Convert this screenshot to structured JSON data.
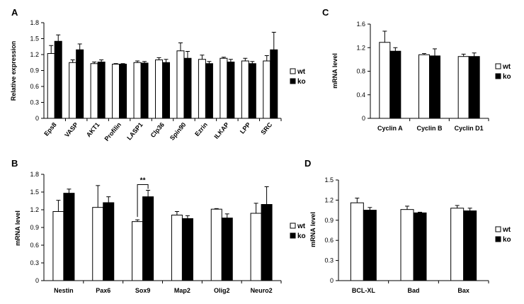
{
  "chart_data": [
    {
      "panel": "A",
      "type": "bar",
      "ylabel": "Relative expression",
      "ylim": [
        0,
        1.8
      ],
      "yticks": [
        "0",
        "0.3",
        "0.6",
        "0.9",
        "1.2",
        "1.5",
        "1.8"
      ],
      "categories": [
        "Eps8",
        "VASP",
        "AKT1",
        "Profilin",
        "LASP1",
        "Clp36",
        "Spin90",
        "Ezrin",
        "ILKAP",
        "LPP",
        "SRC"
      ],
      "series": [
        {
          "name": "wt",
          "color": "#ffffff",
          "values": [
            1.22,
            1.05,
            1.03,
            1.02,
            1.05,
            1.1,
            1.27,
            1.11,
            1.13,
            1.08,
            1.08
          ],
          "errors": [
            0.15,
            0.05,
            0.03,
            0.01,
            0.03,
            0.04,
            0.15,
            0.08,
            0.02,
            0.05,
            0.1
          ]
        },
        {
          "name": "ko",
          "color": "#000000",
          "values": [
            1.45,
            1.29,
            1.06,
            1.02,
            1.04,
            1.05,
            1.13,
            1.03,
            1.06,
            1.03,
            1.29
          ],
          "errors": [
            0.12,
            0.11,
            0.04,
            0.01,
            0.03,
            0.06,
            0.13,
            0.04,
            0.05,
            0.04,
            0.33
          ]
        }
      ],
      "annotations": [],
      "legend": [
        "wt",
        "ko"
      ]
    },
    {
      "panel": "B",
      "type": "bar",
      "ylabel": "mRNA level",
      "ylim": [
        0,
        1.8
      ],
      "yticks": [
        "0",
        "0.3",
        "0.6",
        "0.9",
        "1.2",
        "1.5",
        "1.8"
      ],
      "categories": [
        "Nestin",
        "Pax6",
        "Sox9",
        "Map2",
        "Olig2",
        "Neuro2"
      ],
      "series": [
        {
          "name": "wt",
          "color": "#ffffff",
          "values": [
            1.17,
            1.24,
            1.0,
            1.11,
            1.21,
            1.14
          ],
          "errors": [
            0.19,
            0.37,
            0.03,
            0.06,
            0.01,
            0.17
          ]
        },
        {
          "name": "ko",
          "color": "#000000",
          "values": [
            1.48,
            1.32,
            1.42,
            1.05,
            1.06,
            1.29
          ],
          "errors": [
            0.07,
            0.1,
            0.11,
            0.05,
            0.07,
            0.3
          ]
        }
      ],
      "annotations": [
        {
          "category": "Sox9",
          "text": "**"
        }
      ],
      "legend": [
        "wt",
        "ko"
      ]
    },
    {
      "panel": "C",
      "type": "bar",
      "ylabel": "mRNA level",
      "ylim": [
        0,
        1.6
      ],
      "yticks": [
        "0",
        "0.4",
        "0.8",
        "1.2",
        "1.6"
      ],
      "categories": [
        "Cyclin A",
        "Cyclin B",
        "Cyclin D1"
      ],
      "series": [
        {
          "name": "wt",
          "color": "#ffffff",
          "values": [
            1.29,
            1.08,
            1.05
          ],
          "errors": [
            0.19,
            0.02,
            0.04
          ]
        },
        {
          "name": "ko",
          "color": "#000000",
          "values": [
            1.14,
            1.06,
            1.05
          ],
          "errors": [
            0.06,
            0.12,
            0.06
          ]
        }
      ],
      "annotations": [],
      "legend": [
        "wt",
        "ko"
      ]
    },
    {
      "panel": "D",
      "type": "bar",
      "ylabel": "mRNA level",
      "ylim": [
        0,
        1.5
      ],
      "yticks": [
        "0",
        "0.3",
        "0.6",
        "0.9",
        "1.2",
        "1.5"
      ],
      "categories": [
        "BCL-XL",
        "Bad",
        "Bax"
      ],
      "series": [
        {
          "name": "wt",
          "color": "#ffffff",
          "values": [
            1.16,
            1.06,
            1.08
          ],
          "errors": [
            0.07,
            0.05,
            0.04
          ]
        },
        {
          "name": "ko",
          "color": "#000000",
          "values": [
            1.05,
            1.01,
            1.04
          ],
          "errors": [
            0.04,
            0.01,
            0.04
          ]
        }
      ],
      "annotations": [],
      "legend": [
        "wt",
        "ko"
      ]
    }
  ]
}
